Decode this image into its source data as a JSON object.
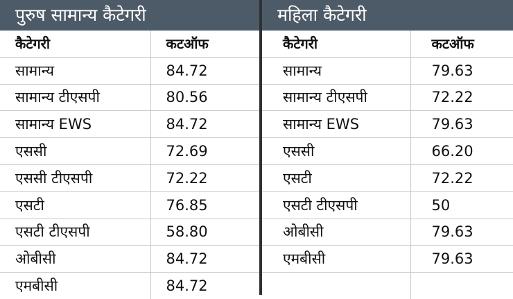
{
  "left": {
    "title": "पुरुष सामान्य कैटेगरी",
    "col_category": "कैटेगरी",
    "col_cutoff": "कटऑफ",
    "rows": [
      {
        "category": "सामान्य",
        "cutoff": "84.72"
      },
      {
        "category": "सामान्य टीएसपी",
        "cutoff": "80.56"
      },
      {
        "category": "सामान्य EWS",
        "cutoff": "84.72"
      },
      {
        "category": "एससी",
        "cutoff": "72.69"
      },
      {
        "category": "एससी टीएसपी",
        "cutoff": "72.22"
      },
      {
        "category": "एसटी",
        "cutoff": "76.85"
      },
      {
        "category": "एसटी टीएसपी",
        "cutoff": "58.80"
      },
      {
        "category": "ओबीसी",
        "cutoff": "84.72"
      },
      {
        "category": "एमबीसी",
        "cutoff": "84.72"
      }
    ]
  },
  "right": {
    "title": "महिला कैटेगरी",
    "col_category": "कैटेगरी",
    "col_cutoff": "कटऑफ",
    "rows": [
      {
        "category": "सामान्य",
        "cutoff": "79.63"
      },
      {
        "category": "सामान्य टीएसपी",
        "cutoff": "72.22"
      },
      {
        "category": "सामान्य EWS",
        "cutoff": "79.63"
      },
      {
        "category": "एससी",
        "cutoff": "66.20"
      },
      {
        "category": "एसटी",
        "cutoff": "72.22"
      },
      {
        "category": "एसटी टीएसपी",
        "cutoff": "50"
      },
      {
        "category": "ओबीसी",
        "cutoff": "79.63"
      },
      {
        "category": "एमबीसी",
        "cutoff": "79.63"
      },
      {
        "category": "",
        "cutoff": ""
      }
    ]
  }
}
